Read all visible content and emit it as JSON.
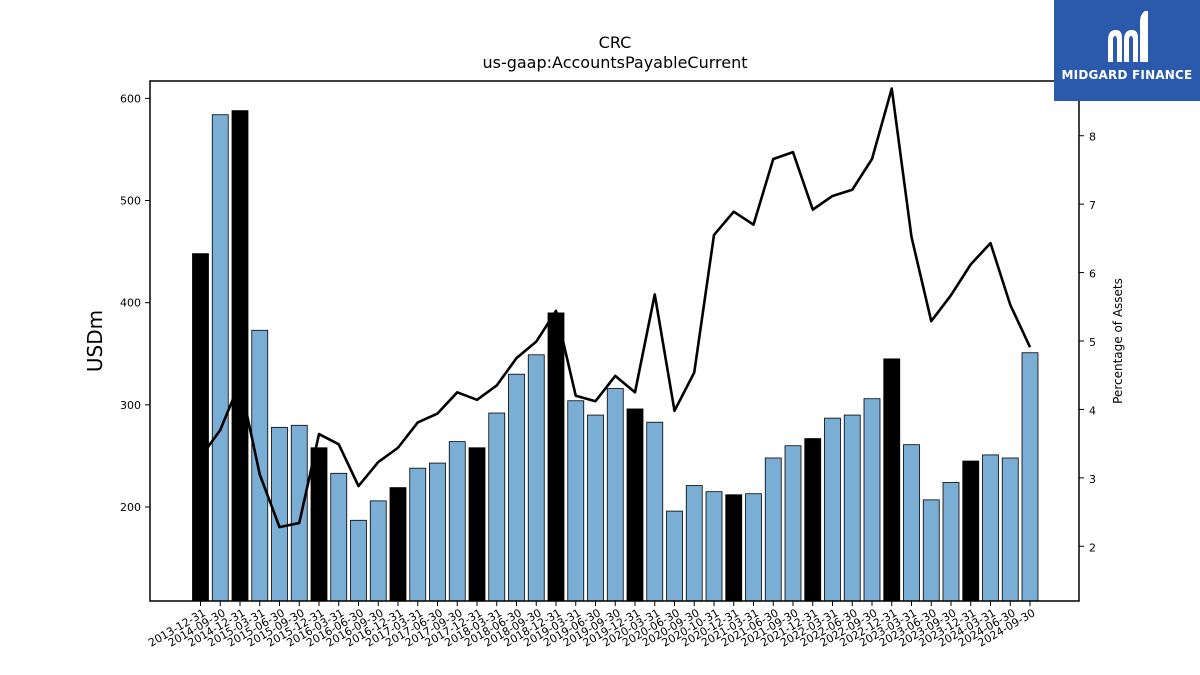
{
  "logo": {
    "text": "MIDGARD FINANCE"
  },
  "chart_data": {
    "type": "bar",
    "title": "CRC",
    "subtitle": "us-gaap:AccountsPayableCurrent",
    "ylabel": "USDm",
    "y2label": "Percentage of Assets",
    "ylim": [
      108,
      617
    ],
    "y2lim": [
      1.2,
      8.8
    ],
    "yticks": [
      200,
      300,
      400,
      500,
      600
    ],
    "y2ticks": [
      2,
      3,
      4,
      5,
      6,
      7,
      8
    ],
    "colors": {
      "bar_highlight": "#000000",
      "bar_default": "#7aaed4",
      "line": "#000000"
    },
    "categories": [
      "2013-12-31",
      "2014-09-30",
      "2014-12-31",
      "2015-03-31",
      "2015-06-30",
      "2015-09-30",
      "2015-12-31",
      "2016-03-31",
      "2016-06-30",
      "2016-09-30",
      "2016-12-31",
      "2017-03-31",
      "2017-06-30",
      "2017-09-30",
      "2017-12-31",
      "2018-03-31",
      "2018-06-30",
      "2018-09-30",
      "2018-12-31",
      "2019-03-31",
      "2019-06-30",
      "2019-09-30",
      "2019-12-31",
      "2020-03-31",
      "2020-06-30",
      "2020-09-30",
      "2020-10-31",
      "2020-12-31",
      "2021-03-31",
      "2021-06-30",
      "2021-09-30",
      "2021-12-31",
      "2022-03-31",
      "2022-06-30",
      "2022-09-30",
      "2022-12-31",
      "2023-03-31",
      "2023-06-30",
      "2023-09-30",
      "2023-12-31",
      "2024-03-31",
      "2024-06-30",
      "2024-09-30"
    ],
    "series": [
      {
        "type": "bar",
        "axis": "left",
        "values": [
          448,
          584,
          588,
          373,
          278,
          280,
          258,
          233,
          187,
          206,
          219,
          238,
          243,
          264,
          258,
          292,
          330,
          349,
          390,
          304,
          290,
          316,
          296,
          283,
          196,
          221,
          215,
          212,
          213,
          248,
          260,
          267,
          287,
          290,
          306,
          345,
          261,
          207,
          224,
          245,
          251,
          248,
          351
        ],
        "highlight": [
          true,
          false,
          true,
          false,
          false,
          false,
          true,
          false,
          false,
          false,
          true,
          false,
          false,
          false,
          true,
          false,
          false,
          false,
          true,
          false,
          false,
          false,
          true,
          false,
          false,
          false,
          false,
          true,
          false,
          false,
          false,
          true,
          false,
          false,
          false,
          true,
          false,
          false,
          false,
          true,
          false,
          false,
          false
        ]
      },
      {
        "type": "line",
        "axis": "right",
        "values": [
          3.3,
          3.7,
          4.4,
          3.05,
          2.28,
          2.34,
          3.64,
          3.49,
          2.88,
          3.23,
          3.44,
          3.81,
          3.94,
          4.25,
          4.14,
          4.35,
          4.75,
          4.99,
          5.44,
          4.2,
          4.12,
          4.49,
          4.25,
          5.68,
          3.98,
          4.54,
          6.55,
          6.89,
          6.7,
          7.66,
          7.76,
          6.92,
          7.12,
          7.21,
          7.66,
          8.69,
          6.52,
          5.29,
          5.67,
          6.12,
          6.43,
          5.53,
          4.91
        ]
      }
    ]
  }
}
